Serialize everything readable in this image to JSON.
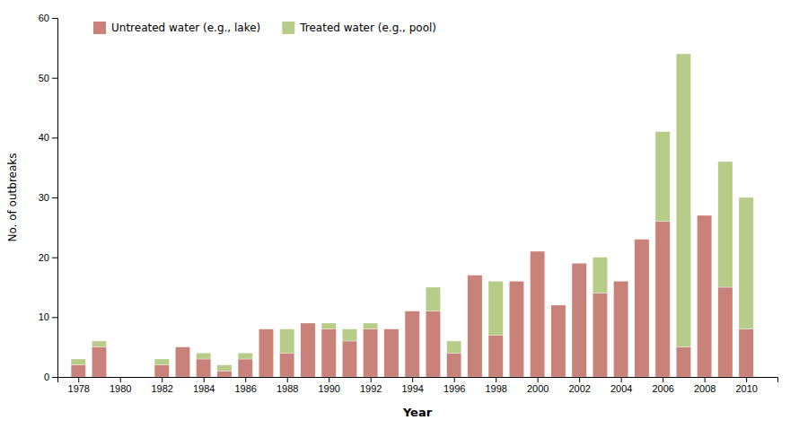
{
  "chart_data": {
    "type": "bar",
    "stacked": true,
    "xlabel": "Year",
    "ylabel": "No. of outbreaks",
    "x": [
      1978,
      1979,
      1980,
      1981,
      1982,
      1983,
      1984,
      1985,
      1986,
      1987,
      1988,
      1989,
      1990,
      1991,
      1992,
      1993,
      1994,
      1995,
      1996,
      1997,
      1998,
      1999,
      2000,
      2001,
      2002,
      2003,
      2004,
      2005,
      2006,
      2007,
      2008,
      2009,
      2010
    ],
    "series": [
      {
        "name": "Untreated water (e.g., lake)",
        "color": "#c9827a",
        "values": [
          2,
          5,
          0,
          0,
          2,
          5,
          3,
          1,
          3,
          8,
          4,
          9,
          8,
          6,
          8,
          8,
          11,
          11,
          4,
          17,
          7,
          16,
          21,
          12,
          19,
          14,
          16,
          23,
          26,
          5,
          27,
          15,
          8
        ]
      },
      {
        "name": "Treated water (e.g., pool)",
        "color": "#b8cc8a",
        "values": [
          1,
          1,
          0,
          0,
          1,
          0,
          1,
          1,
          1,
          0,
          4,
          0,
          1,
          2,
          1,
          0,
          0,
          4,
          2,
          0,
          9,
          0,
          0,
          0,
          0,
          6,
          0,
          0,
          15,
          49,
          0,
          21,
          22
        ]
      }
    ],
    "xlim": [
      1977,
      2011.5
    ],
    "xticks": [
      1978,
      1980,
      1982,
      1984,
      1986,
      1988,
      1990,
      1992,
      1994,
      1996,
      1998,
      2000,
      2002,
      2004,
      2006,
      2008,
      2010
    ],
    "ylim": [
      0,
      60
    ],
    "yticks": [
      0,
      10,
      20,
      30,
      40,
      50,
      60
    ],
    "legend": "upper left",
    "grid": false
  }
}
